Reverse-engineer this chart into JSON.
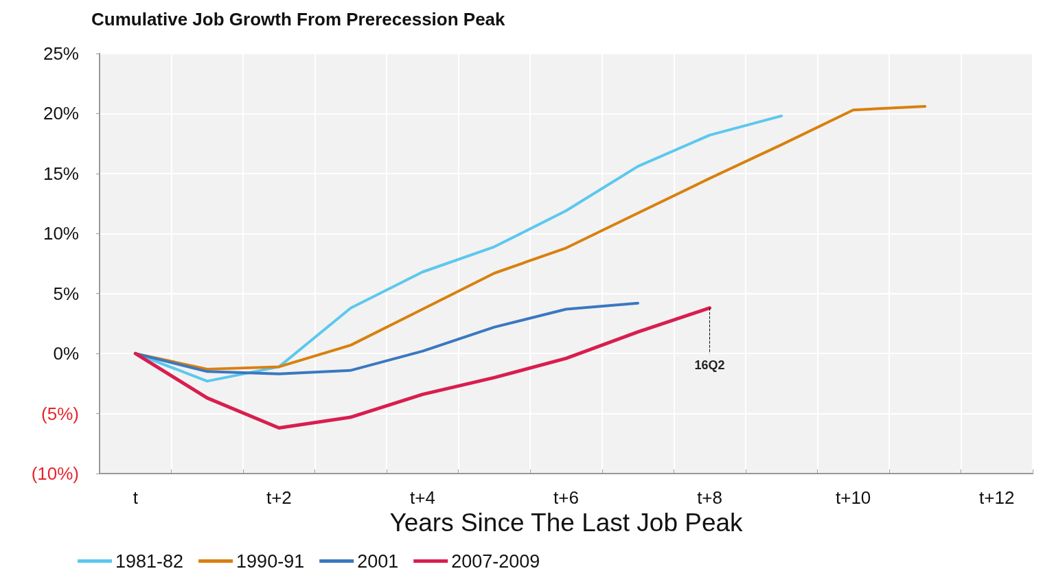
{
  "chart_data": {
    "type": "line",
    "title": "Cumulative Job Growth From Prerecession Peak",
    "xlabel": "Years Since The Last Job Peak",
    "categories": [
      "t",
      null,
      "t+2",
      null,
      "t+4",
      null,
      "t+6",
      null,
      "t+8",
      null,
      "t+10",
      null,
      "t+12"
    ],
    "series": [
      {
        "name": "1981-82",
        "color": "#5bc8ee",
        "values": [
          0,
          -2.3,
          -1.1,
          3.8,
          6.8,
          8.9,
          11.9,
          15.6,
          18.2,
          19.8,
          null,
          null,
          null
        ]
      },
      {
        "name": "1990-91",
        "color": "#d9800f",
        "values": [
          0,
          -1.3,
          -1.1,
          0.7,
          3.7,
          6.7,
          8.8,
          11.7,
          14.6,
          17.4,
          20.3,
          20.6,
          null
        ]
      },
      {
        "name": "2001",
        "color": "#3a78c0",
        "values": [
          0,
          -1.5,
          -1.7,
          -1.4,
          0.2,
          2.2,
          3.7,
          4.2,
          null,
          null,
          null,
          null,
          null
        ]
      },
      {
        "name": "2007-2009",
        "color": "#d81e4f",
        "values": [
          0,
          -3.7,
          -6.2,
          -5.3,
          -3.4,
          -2.0,
          -0.4,
          1.8,
          3.8,
          null,
          null,
          null,
          null
        ]
      }
    ],
    "ylim": [
      -10,
      25
    ],
    "yticks": [
      {
        "value": -10,
        "label": "(10%)"
      },
      {
        "value": -5,
        "label": "(5%)"
      },
      {
        "value": 0,
        "label": "0%"
      },
      {
        "value": 5,
        "label": "5%"
      },
      {
        "value": 10,
        "label": "10%"
      },
      {
        "value": 15,
        "label": "15%"
      },
      {
        "value": 20,
        "label": "20%"
      },
      {
        "value": 25,
        "label": "25%"
      }
    ],
    "annotations": [
      {
        "text": "16Q2",
        "x": "t+8",
        "y": 3.8
      }
    ],
    "grid": true,
    "legend": "bottom left",
    "marker": "none",
    "line_style": "solid"
  }
}
